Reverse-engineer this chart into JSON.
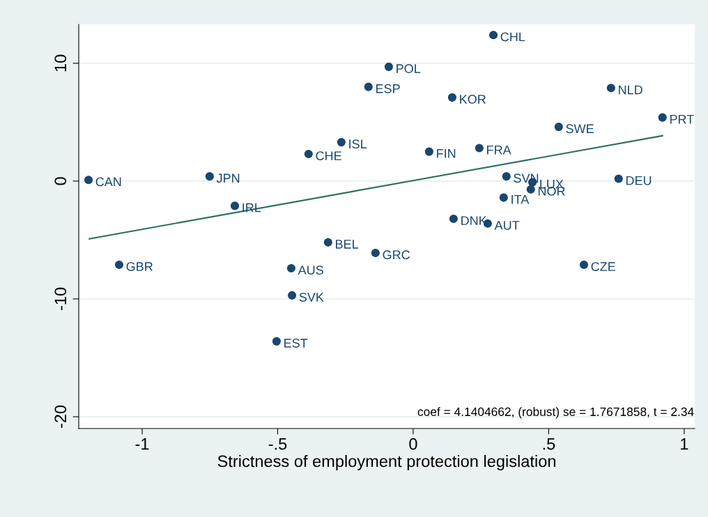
{
  "chart_data": {
    "type": "scatter",
    "xlabel": "Strictness of employment protection legislation",
    "xlim": [
      -1.234,
      1.039
    ],
    "ylim": [
      -21.0,
      13.3
    ],
    "xticks": [
      {
        "value": -1,
        "label": "-1"
      },
      {
        "value": -0.5,
        "label": "-.5"
      },
      {
        "value": 0,
        "label": "0"
      },
      {
        "value": 0.5,
        "label": ".5"
      },
      {
        "value": 1,
        "label": "1"
      }
    ],
    "yticks": [
      -20,
      -10,
      0,
      10
    ],
    "grid": "y",
    "series": [
      {
        "marker": "circle",
        "color": "#1a476f",
        "x": [
          -1.198,
          -1.085,
          -0.751,
          -0.658,
          -0.386,
          -0.265,
          -0.314,
          -0.45,
          -0.447,
          -0.504,
          -0.165,
          -0.09,
          -0.139,
          0.059,
          0.144,
          0.296,
          0.244,
          0.149,
          0.275,
          0.344,
          0.334,
          0.44,
          0.434,
          0.537,
          0.63,
          0.73,
          0.758,
          0.92
        ],
        "values": [
          0.1,
          -7.1,
          0.4,
          -2.1,
          2.3,
          3.3,
          -5.2,
          -7.4,
          -9.7,
          -13.6,
          8.0,
          9.7,
          -6.1,
          2.5,
          7.1,
          12.4,
          2.8,
          -3.2,
          -3.6,
          0.4,
          -1.4,
          -0.1,
          -0.7,
          4.6,
          -7.1,
          7.9,
          0.2,
          5.4
        ]
      },
      {
        "type": "line",
        "color": "#2e7060",
        "x": [
          -1.195,
          0.92
        ],
        "values": [
          -4.9,
          3.85
        ]
      }
    ],
    "annotations": [
      {
        "text": "CAN",
        "x": -1.198,
        "y": 0.1
      },
      {
        "text": "GBR",
        "x": -1.085,
        "y": -7.1
      },
      {
        "text": "JPN",
        "x": -0.751,
        "y": 0.4
      },
      {
        "text": "IRL",
        "x": -0.658,
        "y": -2.1
      },
      {
        "text": "CHE",
        "x": -0.386,
        "y": 2.3
      },
      {
        "text": "ISL",
        "x": -0.265,
        "y": 3.3
      },
      {
        "text": "BEL",
        "x": -0.314,
        "y": -5.2
      },
      {
        "text": "AUS",
        "x": -0.45,
        "y": -7.4
      },
      {
        "text": "SVK",
        "x": -0.447,
        "y": -9.7
      },
      {
        "text": "EST",
        "x": -0.504,
        "y": -13.6
      },
      {
        "text": "ESP",
        "x": -0.165,
        "y": 8.0
      },
      {
        "text": "POL",
        "x": -0.09,
        "y": 9.7
      },
      {
        "text": "GRC",
        "x": -0.139,
        "y": -6.1
      },
      {
        "text": "FIN",
        "x": 0.059,
        "y": 2.5
      },
      {
        "text": "KOR",
        "x": 0.144,
        "y": 7.1
      },
      {
        "text": "CHL",
        "x": 0.296,
        "y": 12.4
      },
      {
        "text": "FRA",
        "x": 0.244,
        "y": 2.8
      },
      {
        "text": "DNK",
        "x": 0.149,
        "y": -3.2
      },
      {
        "text": "AUT",
        "x": 0.275,
        "y": -3.6
      },
      {
        "text": "SVN",
        "x": 0.344,
        "y": 0.4
      },
      {
        "text": "ITA",
        "x": 0.334,
        "y": -1.4
      },
      {
        "text": "LUX",
        "x": 0.44,
        "y": -0.1
      },
      {
        "text": "NOR",
        "x": 0.434,
        "y": -0.7
      },
      {
        "text": "SWE",
        "x": 0.537,
        "y": 4.6
      },
      {
        "text": "CZE",
        "x": 0.63,
        "y": -7.1
      },
      {
        "text": "NLD",
        "x": 0.73,
        "y": 7.9
      },
      {
        "text": "DEU",
        "x": 0.758,
        "y": 0.2
      },
      {
        "text": "PRT",
        "x": 0.92,
        "y": 5.4
      },
      "coef = 4.1404662, (robust) se = 1.7671858, t = 2.34"
    ]
  }
}
